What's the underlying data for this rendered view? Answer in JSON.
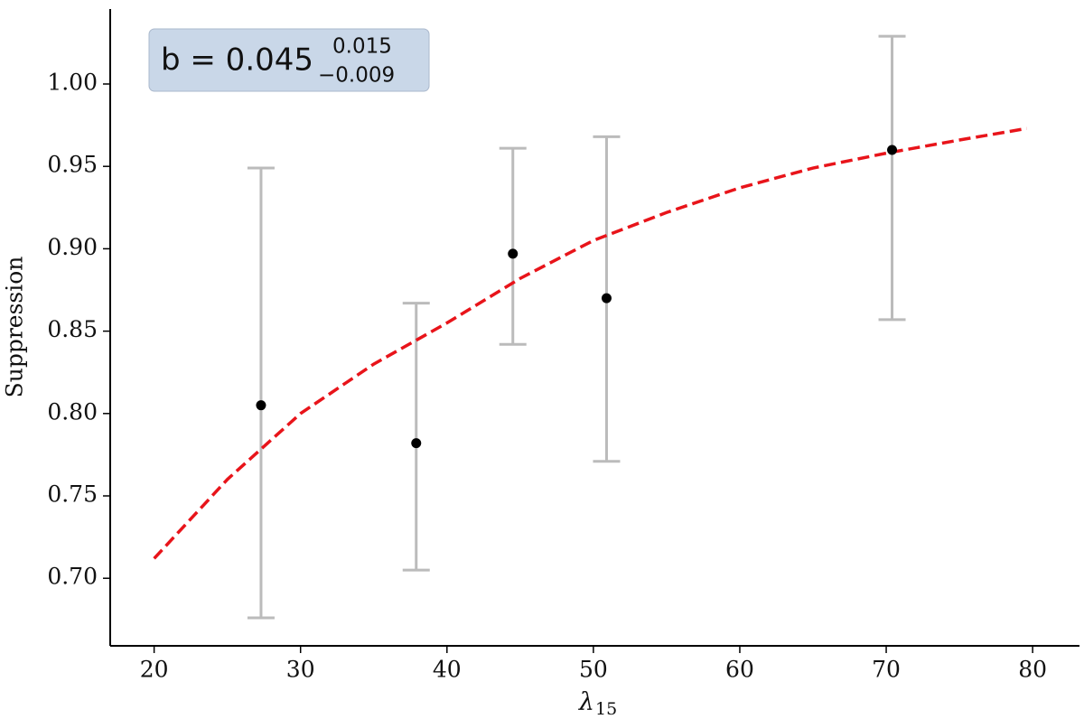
{
  "chart_data": {
    "type": "scatter",
    "annotation": {
      "text": "b = 0.045",
      "upper": "0.015",
      "lower": "−0.009"
    },
    "y_label": "Suppression",
    "x_label": {
      "symbol": "λ",
      "subscript": "15"
    },
    "xlim": [
      17,
      83.2
    ],
    "ylim": [
      0.659,
      1.0455
    ],
    "xticks": [
      20,
      30,
      40,
      50,
      60,
      70,
      80
    ],
    "yticks": [
      {
        "value": 0.7,
        "label": "0.70"
      },
      0.75,
      {
        "value": 0.8,
        "label": "0.80"
      },
      0.85,
      {
        "value": 0.9,
        "label": "0.90"
      },
      0.95,
      {
        "value": 1.0,
        "label": "1.00"
      }
    ],
    "series": [
      {
        "type": "errorbar",
        "color": "#000000",
        "error_color": "#bbbbbb",
        "x": [
          27.3,
          37.9,
          44.5,
          50.9,
          70.4
        ],
        "values": [
          0.805,
          0.782,
          0.897,
          0.87,
          0.96
        ],
        "lower": [
          0.676,
          0.705,
          0.842,
          0.771,
          0.857
        ],
        "upper": [
          0.949,
          0.867,
          0.961,
          0.968,
          1.029
        ]
      },
      {
        "type": "line",
        "color": "#e8141a",
        "dashed": true,
        "x": [
          20,
          25,
          30,
          35,
          40,
          45,
          50,
          55,
          60,
          65,
          70,
          75,
          79.6
        ],
        "values": [
          0.712,
          0.76,
          0.8,
          0.83,
          0.855,
          0.882,
          0.905,
          0.922,
          0.937,
          0.949,
          0.958,
          0.966,
          0.973
        ]
      }
    ]
  }
}
